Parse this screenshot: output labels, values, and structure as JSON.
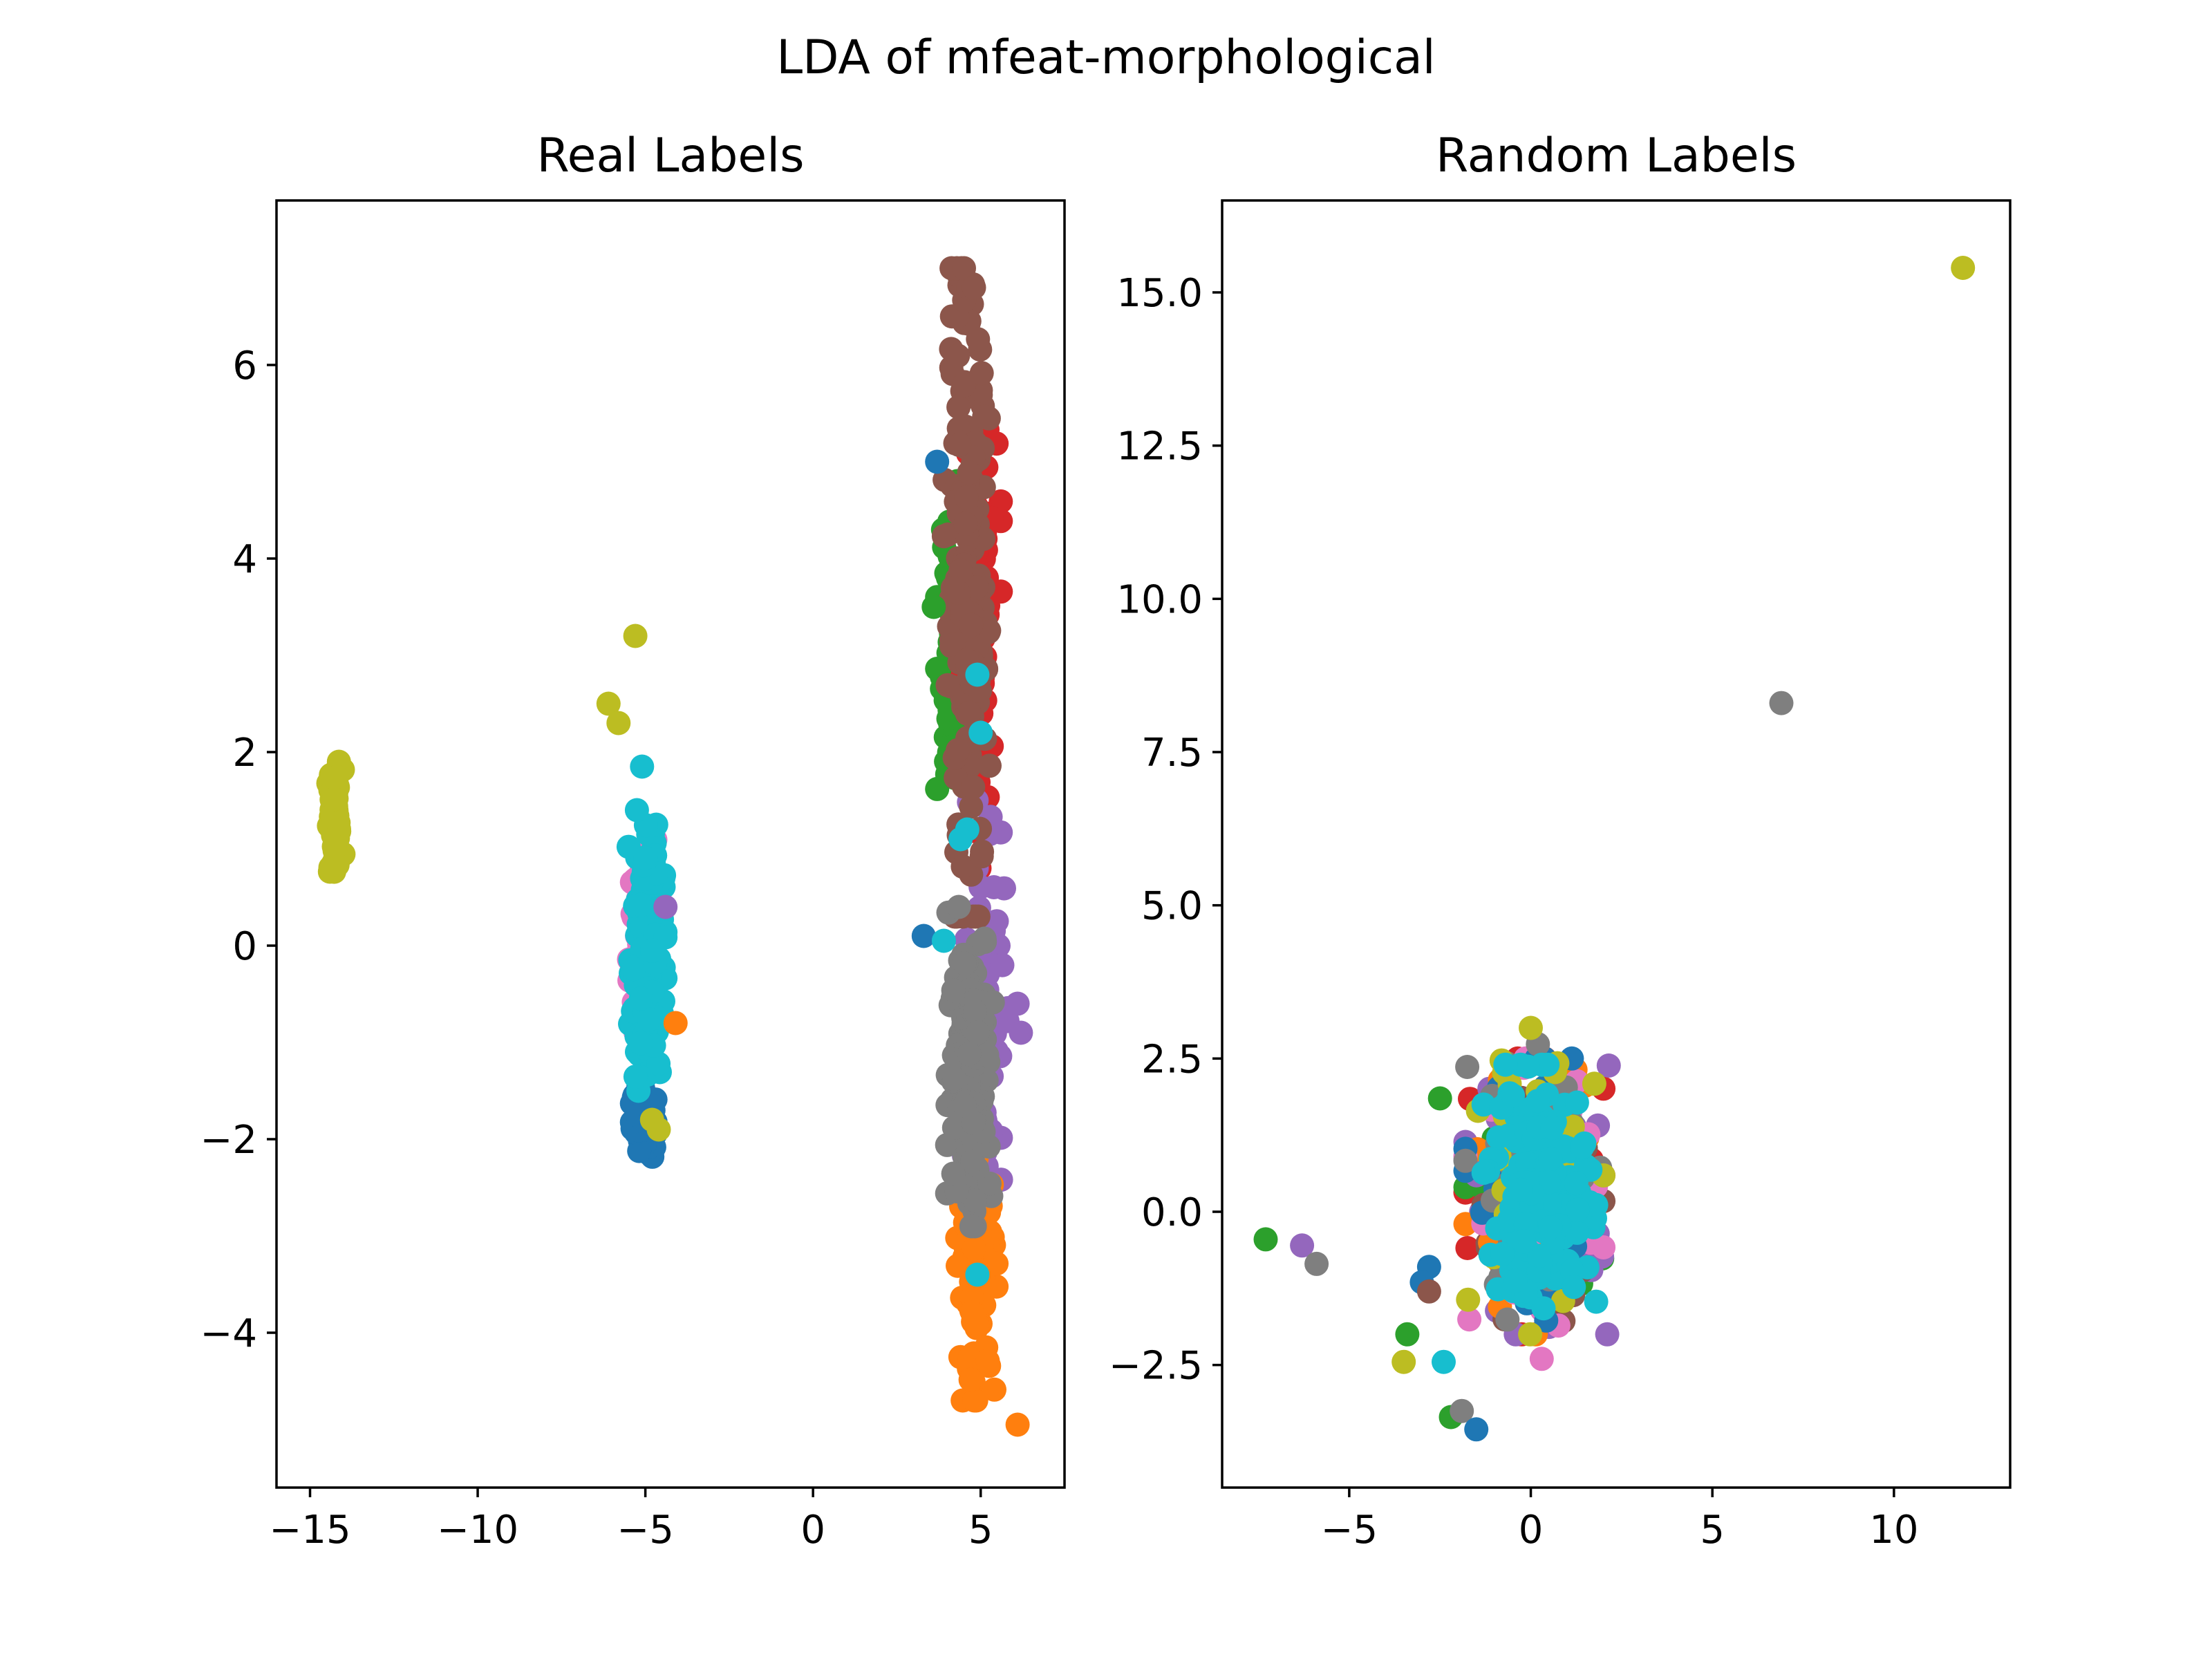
{
  "figure": {
    "suptitle": "LDA of mfeat-morphological"
  },
  "palette": [
    "#1f77b4",
    "#ff7f0e",
    "#2ca02c",
    "#d62728",
    "#9467bd",
    "#8c564b",
    "#e377c2",
    "#7f7f7f",
    "#bcbd22",
    "#17becf"
  ],
  "chart_data": [
    {
      "type": "scatter",
      "title": "Real Labels",
      "xlabel": "",
      "ylabel": "",
      "xlim": [
        -16,
        7.5
      ],
      "ylim": [
        -5.6,
        7.7
      ],
      "xticks": [
        -15,
        -10,
        -5,
        0,
        5
      ],
      "yticks": [
        -4,
        -2,
        0,
        2,
        4,
        6
      ],
      "grid": false,
      "legend": "none",
      "clusters": [
        {
          "class": 8,
          "x": [
            -14.5,
            -14.0
          ],
          "y": [
            0.6,
            1.9
          ],
          "n": 60
        },
        {
          "class": 0,
          "x": [
            -5.4,
            -4.7
          ],
          "y": [
            -2.2,
            -1.4
          ],
          "n": 80
        },
        {
          "class": 6,
          "x": [
            -5.6,
            -4.5
          ],
          "y": [
            -1.0,
            1.2
          ],
          "n": 50
        },
        {
          "class": 9,
          "x": [
            -5.5,
            -4.4
          ],
          "y": [
            -1.5,
            1.4
          ],
          "n": 140
        },
        {
          "class": 2,
          "x": [
            3.7,
            4.5
          ],
          "y": [
            0.8,
            4.8
          ],
          "n": 60
        },
        {
          "class": 3,
          "x": [
            4.2,
            5.6
          ],
          "y": [
            0.8,
            5.8
          ],
          "n": 70
        },
        {
          "class": 4,
          "x": [
            4.5,
            5.8
          ],
          "y": [
            -3.2,
            1.5
          ],
          "n": 70
        },
        {
          "class": 5,
          "x": [
            3.9,
            5.3
          ],
          "y": [
            0.3,
            7.0
          ],
          "n": 180
        },
        {
          "class": 1,
          "x": [
            4.3,
            5.5
          ],
          "y": [
            -4.7,
            -2.2
          ],
          "n": 90
        },
        {
          "class": 7,
          "x": [
            4.0,
            5.4
          ],
          "y": [
            -2.9,
            0.4
          ],
          "n": 160
        }
      ],
      "points": [
        {
          "class": 8,
          "x": -5.3,
          "y": 3.2
        },
        {
          "class": 8,
          "x": -6.1,
          "y": 2.5
        },
        {
          "class": 8,
          "x": -5.8,
          "y": 2.3
        },
        {
          "class": 8,
          "x": -4.6,
          "y": -1.9
        },
        {
          "class": 8,
          "x": -4.8,
          "y": -1.8
        },
        {
          "class": 9,
          "x": -5.1,
          "y": 1.85
        },
        {
          "class": 1,
          "x": -4.1,
          "y": -0.8
        },
        {
          "class": 4,
          "x": -4.4,
          "y": 0.4
        },
        {
          "class": 0,
          "x": 3.3,
          "y": 0.1
        },
        {
          "class": 0,
          "x": 3.7,
          "y": 5.0
        },
        {
          "class": 9,
          "x": 3.9,
          "y": 0.05
        },
        {
          "class": 2,
          "x": 3.6,
          "y": 3.5
        },
        {
          "class": 4,
          "x": 6.1,
          "y": -0.6
        },
        {
          "class": 4,
          "x": 6.2,
          "y": -0.9
        },
        {
          "class": 1,
          "x": 6.1,
          "y": -4.95
        },
        {
          "class": 9,
          "x": 4.9,
          "y": 2.8
        },
        {
          "class": 9,
          "x": 5.0,
          "y": 2.2
        },
        {
          "class": 9,
          "x": 4.6,
          "y": 1.2
        },
        {
          "class": 9,
          "x": 4.4,
          "y": 1.1
        },
        {
          "class": 9,
          "x": 4.9,
          "y": -3.4
        },
        {
          "class": 5,
          "x": 4.5,
          "y": 7.0
        },
        {
          "class": 5,
          "x": 4.8,
          "y": 6.8
        }
      ]
    },
    {
      "type": "scatter",
      "title": "Random Labels",
      "xlabel": "",
      "ylabel": "",
      "xlim": [
        -8.5,
        13.2
      ],
      "ylim": [
        -4.5,
        16.5
      ],
      "xticks": [
        -5,
        0,
        5,
        10
      ],
      "yticks": [
        -2.5,
        0.0,
        2.5,
        5.0,
        7.5,
        10.0,
        12.5,
        15.0
      ],
      "grid": false,
      "legend": "none",
      "clusters": [
        {
          "class": 3,
          "x": [
            -1.8,
            2.0
          ],
          "y": [
            -2.0,
            2.5
          ],
          "n": 60
        },
        {
          "class": 2,
          "x": [
            -1.8,
            2.0
          ],
          "y": [
            -2.0,
            2.5
          ],
          "n": 50
        },
        {
          "class": 4,
          "x": [
            -1.8,
            2.5
          ],
          "y": [
            -2.0,
            2.5
          ],
          "n": 50
        },
        {
          "class": 5,
          "x": [
            -1.8,
            2.0
          ],
          "y": [
            -2.0,
            2.5
          ],
          "n": 50
        },
        {
          "class": 1,
          "x": [
            -1.8,
            2.0
          ],
          "y": [
            -2.0,
            2.5
          ],
          "n": 50
        },
        {
          "class": 6,
          "x": [
            -1.8,
            2.0
          ],
          "y": [
            -2.0,
            2.5
          ],
          "n": 50
        },
        {
          "class": 0,
          "x": [
            -1.8,
            2.0
          ],
          "y": [
            -2.0,
            2.5
          ],
          "n": 50
        },
        {
          "class": 7,
          "x": [
            -1.8,
            2.0
          ],
          "y": [
            -2.0,
            3.0
          ],
          "n": 50
        },
        {
          "class": 8,
          "x": [
            -1.8,
            2.0
          ],
          "y": [
            -2.0,
            3.0
          ],
          "n": 50
        },
        {
          "class": 9,
          "x": [
            -1.3,
            1.8
          ],
          "y": [
            -1.6,
            2.4
          ],
          "n": 160
        }
      ],
      "points": [
        {
          "class": 8,
          "x": 11.9,
          "y": 15.4
        },
        {
          "class": 7,
          "x": 6.9,
          "y": 8.3
        },
        {
          "class": 2,
          "x": -7.3,
          "y": -0.45
        },
        {
          "class": 4,
          "x": -6.3,
          "y": -0.55
        },
        {
          "class": 7,
          "x": -5.9,
          "y": -0.85
        },
        {
          "class": 0,
          "x": -2.8,
          "y": -0.9
        },
        {
          "class": 0,
          "x": -3.0,
          "y": -1.15
        },
        {
          "class": 5,
          "x": -2.8,
          "y": -1.3
        },
        {
          "class": 2,
          "x": -3.4,
          "y": -2.0
        },
        {
          "class": 8,
          "x": -3.5,
          "y": -2.45
        },
        {
          "class": 9,
          "x": -2.4,
          "y": -2.45
        },
        {
          "class": 2,
          "x": -2.2,
          "y": -3.35
        },
        {
          "class": 7,
          "x": -1.9,
          "y": -3.25
        },
        {
          "class": 0,
          "x": -1.5,
          "y": -3.55
        },
        {
          "class": 6,
          "x": 0.3,
          "y": -2.4
        },
        {
          "class": 2,
          "x": -2.5,
          "y": 1.85
        },
        {
          "class": 9,
          "x": -0.7,
          "y": 2.4
        },
        {
          "class": 8,
          "x": 0.0,
          "y": 3.0
        }
      ]
    }
  ]
}
